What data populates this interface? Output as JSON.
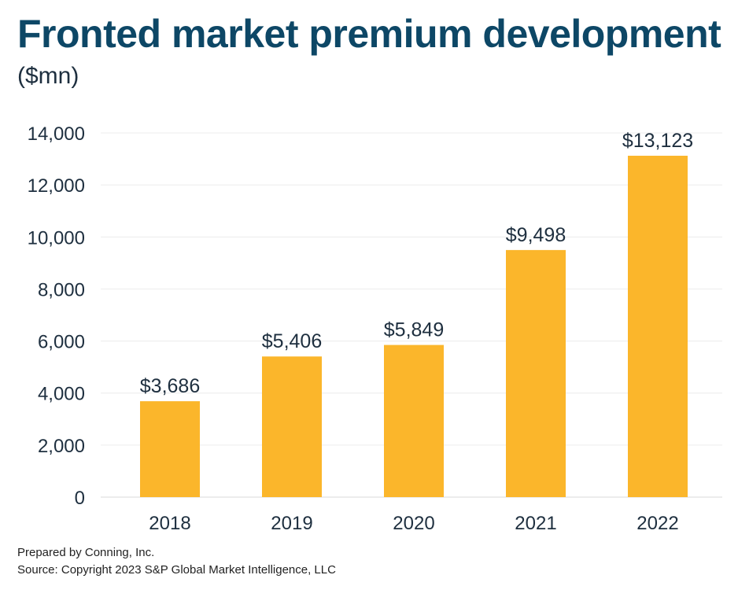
{
  "chart_data": {
    "type": "bar",
    "title": "Fronted market premium development",
    "subtitle": "($mn)",
    "categories": [
      "2018",
      "2019",
      "2020",
      "2021",
      "2022"
    ],
    "values": [
      3686,
      5406,
      5849,
      9498,
      13123
    ],
    "data_labels": [
      "$3,686",
      "$5,406",
      "$5,849",
      "$9,498",
      "$13,123"
    ],
    "y_ticks": [
      0,
      2000,
      4000,
      6000,
      8000,
      10000,
      12000,
      14000
    ],
    "y_tick_labels": [
      "0",
      "2,000",
      "4,000",
      "6,000",
      "8,000",
      "10,000",
      "12,000",
      "14,000"
    ],
    "ylim": [
      0,
      14000
    ],
    "xlabel": "",
    "ylabel": "",
    "grid": true,
    "bar_color": "#fbb62b"
  },
  "footer": {
    "prepared_by": "Prepared by Conning, Inc.",
    "source": "Source: Copyright 2023 S&P Global Market Intelligence, LLC"
  }
}
